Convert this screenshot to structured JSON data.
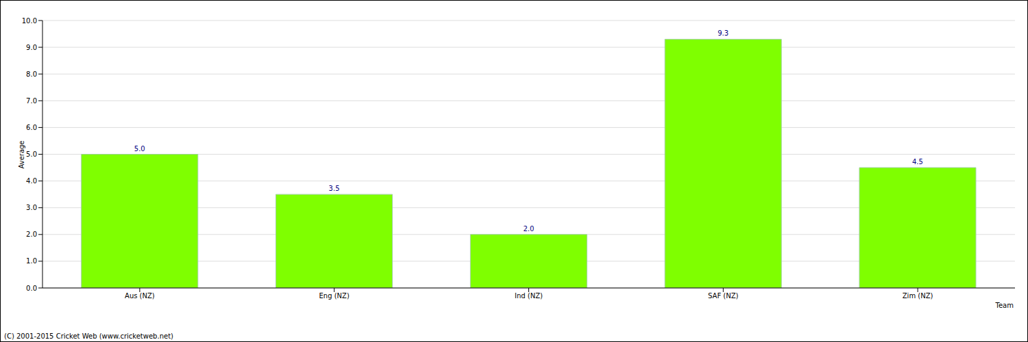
{
  "chart_data": {
    "type": "bar",
    "categories": [
      "Aus (NZ)",
      "Eng (NZ)",
      "Ind (NZ)",
      "SAF (NZ)",
      "Zim (NZ)"
    ],
    "values": [
      5.0,
      3.5,
      2.0,
      9.3,
      4.5
    ],
    "value_labels": [
      "5.0",
      "3.5",
      "2.0",
      "9.3",
      "4.5"
    ],
    "color": "#7fff00",
    "ylim": [
      0,
      10
    ],
    "yticks": [
      {
        "value": 0,
        "label": "0.0"
      },
      {
        "value": 1,
        "label": "1.0"
      },
      {
        "value": 2,
        "label": "2.0"
      },
      {
        "value": 3,
        "label": "3.0"
      },
      {
        "value": 4,
        "label": "4.0"
      },
      {
        "value": 5,
        "label": "5.0"
      },
      {
        "value": 6,
        "label": "6.0"
      },
      {
        "value": 7,
        "label": "7.0"
      },
      {
        "value": 8,
        "label": "8.0"
      },
      {
        "value": 9,
        "label": "9.0"
      },
      {
        "value": 10,
        "label": "10.0"
      }
    ],
    "grid": true,
    "data_labels": true,
    "y_label": "Average",
    "x_label": "Team",
    "annotations": [
      "(C) 2001-2015 Cricket Web (www.cricketweb.net)"
    ]
  }
}
